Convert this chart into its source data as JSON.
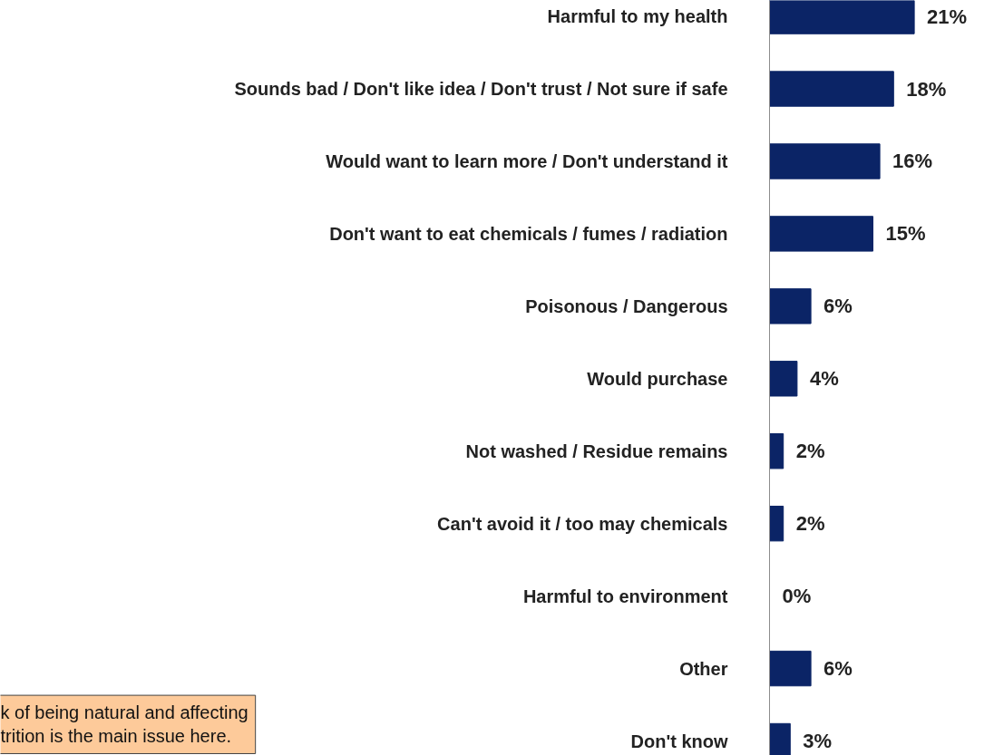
{
  "chart_data": {
    "type": "bar",
    "orientation": "horizontal",
    "categories": [
      "Harmful to my health",
      "Sounds bad / Don't like idea / Don't trust / Not sure if safe",
      "Would want to learn more / Don't understand it",
      "Don't want to eat chemicals / fumes / radiation",
      "Poisonous / Dangerous",
      "Would purchase",
      "Not washed / Residue remains",
      "Can't avoid it / too may chemicals",
      "Harmful to environment",
      "Other",
      "Don't know"
    ],
    "values": [
      21,
      18,
      16,
      15,
      6,
      4,
      2,
      2,
      0,
      6,
      3
    ],
    "value_labels": [
      "21%",
      "18%",
      "16%",
      "15%",
      "6%",
      "4%",
      "2%",
      "2%",
      "0%",
      "6%",
      "3%"
    ],
    "color": "#0b2466",
    "tick_labels": "y",
    "annotations": [
      "k of being natural and affecting\ntrition is the main issue here."
    ]
  }
}
